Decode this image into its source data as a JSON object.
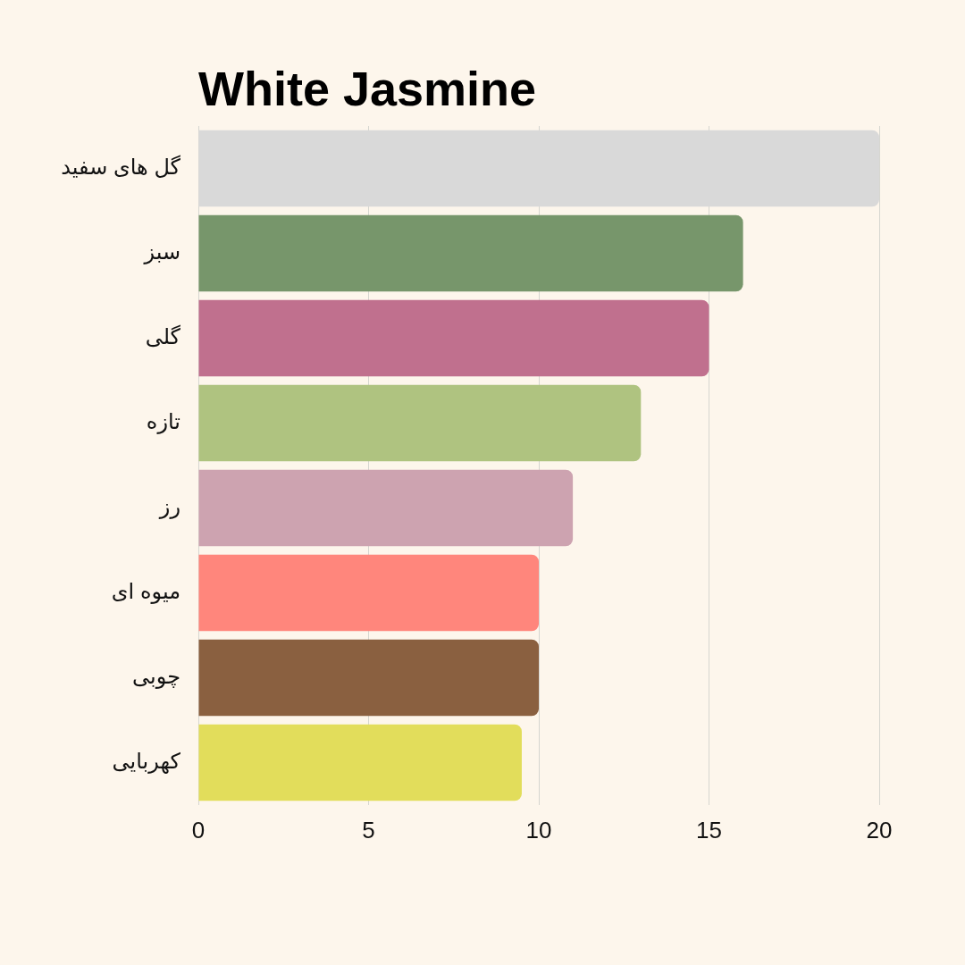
{
  "chart_data": {
    "type": "bar",
    "orientation": "horizontal",
    "title": "White Jasmine",
    "categories": [
      "گل های سفید",
      "سبز",
      "گلی",
      "تازه",
      "رز",
      "میوه ای",
      "چوبی",
      "کهربایی"
    ],
    "values": [
      20,
      16,
      15,
      13,
      11,
      10,
      10,
      9.5
    ],
    "colors": [
      "#d9d9d9",
      "#77966b",
      "#c0708e",
      "#afc380",
      "#cda3b0",
      "#ff867c",
      "#8a6040",
      "#e2dd5b"
    ],
    "xlim": [
      0,
      20
    ],
    "xticks": [
      0,
      5,
      10,
      15,
      20
    ],
    "grid": "x",
    "legend": false
  }
}
